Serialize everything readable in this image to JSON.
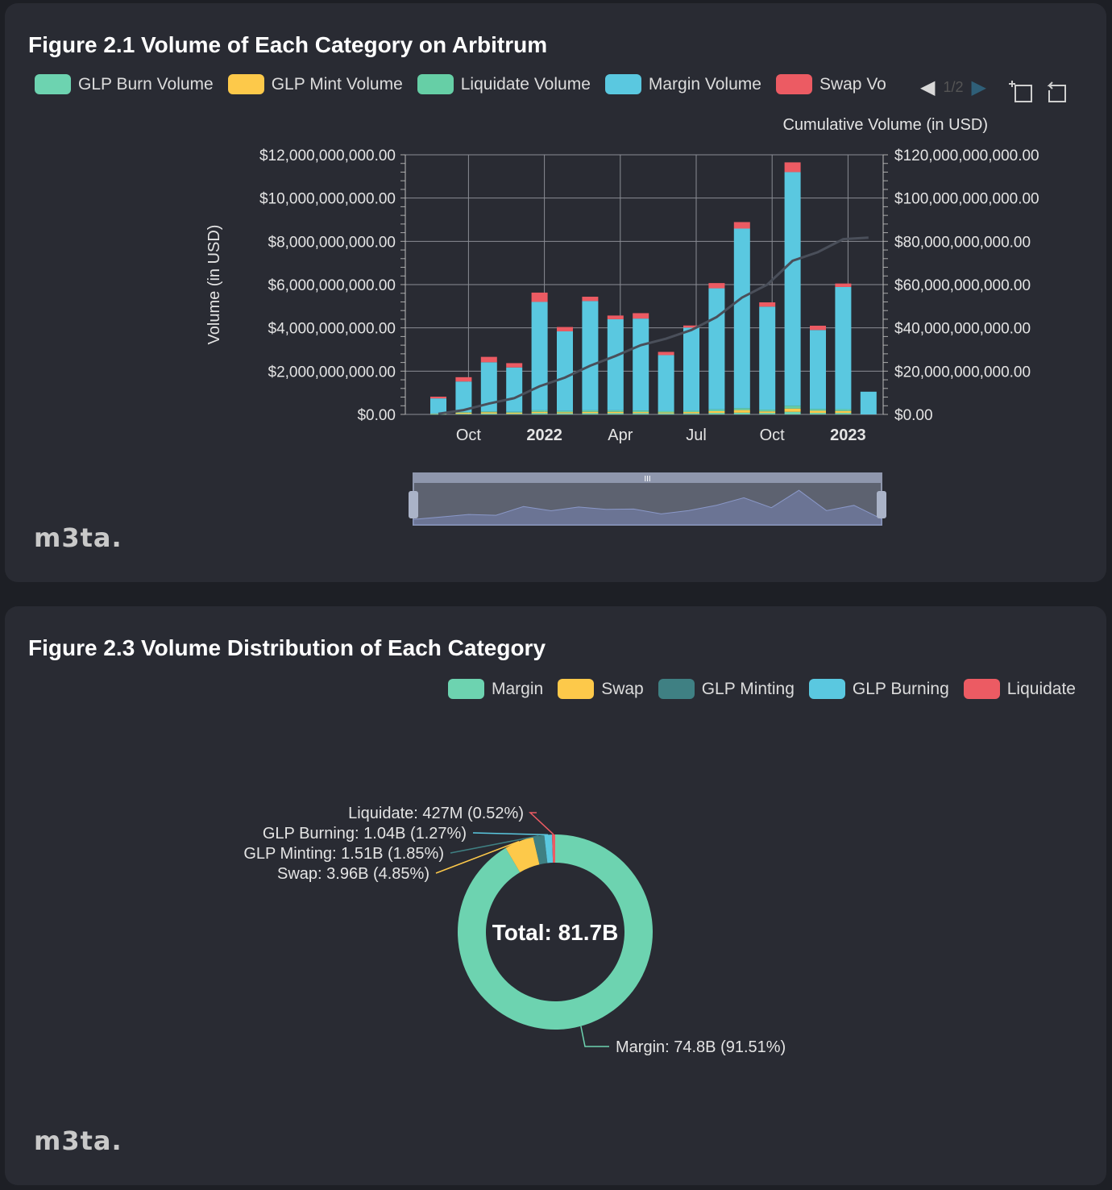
{
  "figure1": {
    "title": "Figure 2.1 Volume of Each Category on Arbitrum",
    "legend": [
      {
        "label": "GLP Burn Volume",
        "color": "#6dd3b0"
      },
      {
        "label": "GLP Mint Volume",
        "color": "#fdc94a"
      },
      {
        "label": "Liquidate Volume",
        "color": "#66cfa6"
      },
      {
        "label": "Margin Volume",
        "color": "#5ac8e0"
      },
      {
        "label": "Swap Vo",
        "color": "#ec5b63"
      }
    ],
    "pager": "1/2",
    "logo": "m3ta."
  },
  "figure2": {
    "title": "Figure 2.3 Volume Distribution of Each Category",
    "legend": [
      {
        "label": "Margin",
        "color": "#6dd3b0"
      },
      {
        "label": "Swap",
        "color": "#fdc94a"
      },
      {
        "label": "GLP Minting",
        "color": "#3f8083"
      },
      {
        "label": "GLP Burning",
        "color": "#5ac8e0"
      },
      {
        "label": "Liquidate",
        "color": "#ec5b63"
      }
    ],
    "logo": "m3ta."
  },
  "chart_data": [
    {
      "type": "bar",
      "title": "Figure 2.1 Volume of Each Category on Arbitrum",
      "ylabel": "Volume (in USD)",
      "y2label": "Cumulative Volume (in USD)",
      "ylim": [
        0,
        12000000000
      ],
      "y2lim": [
        0,
        120000000000
      ],
      "yticks": [
        "$0.00",
        "$2,000,000,000.00",
        "$4,000,000,000.00",
        "$6,000,000,000.00",
        "$8,000,000,000.00",
        "$10,000,000,000.00",
        "$12,000,000,000.00"
      ],
      "y2ticks": [
        "$0.00",
        "$20,000,000,000.00",
        "$40,000,000,000.00",
        "$60,000,000,000.00",
        "$80,000,000,000.00",
        "$100,000,000,000.00",
        "$120,000,000,000.00"
      ],
      "xticks": [
        "Oct",
        "2022",
        "Apr",
        "Jul",
        "Oct",
        "2023"
      ],
      "categories": [
        "2021-09",
        "2021-10",
        "2021-11",
        "2021-12",
        "2022-01",
        "2022-02",
        "2022-03",
        "2022-04",
        "2022-05",
        "2022-06",
        "2022-07",
        "2022-08",
        "2022-09",
        "2022-10",
        "2022-11",
        "2022-12",
        "2023-01",
        "2023-02"
      ],
      "series": [
        {
          "name": "GLP Burn Volume",
          "color": "#6dd3b0",
          "values": [
            0.01,
            0.03,
            0.04,
            0.03,
            0.06,
            0.05,
            0.06,
            0.06,
            0.06,
            0.05,
            0.05,
            0.07,
            0.08,
            0.07,
            0.12,
            0.07,
            0.07,
            0
          ]
        },
        {
          "name": "GLP Mint Volume",
          "color": "#fdc94a",
          "values": [
            0.02,
            0.05,
            0.06,
            0.05,
            0.06,
            0.05,
            0.06,
            0.06,
            0.05,
            0.04,
            0.06,
            0.08,
            0.12,
            0.07,
            0.15,
            0.1,
            0.09,
            0
          ]
        },
        {
          "name": "Liquidate Volume",
          "color": "#66cfa6",
          "values": [
            0.01,
            0.03,
            0.04,
            0.04,
            0.07,
            0.06,
            0.07,
            0.07,
            0.07,
            0.06,
            0.06,
            0.08,
            0.09,
            0.08,
            0.13,
            0.08,
            0.08,
            0
          ]
        },
        {
          "name": "Margin Volume",
          "color": "#5ac8e0",
          "values": [
            0.7,
            1.41,
            2.27,
            2.05,
            5.01,
            3.68,
            5.05,
            4.21,
            4.25,
            2.59,
            3.84,
            5.6,
            8.3,
            4.76,
            10.8,
            3.65,
            5.65,
            1.05
          ]
        },
        {
          "name": "Swap Vo",
          "color": "#ec5b63",
          "values": [
            0.08,
            0.2,
            0.25,
            0.2,
            0.43,
            0.2,
            0.2,
            0.17,
            0.25,
            0.15,
            0.1,
            0.24,
            0.3,
            0.2,
            0.45,
            0.2,
            0.16,
            0
          ]
        }
      ],
      "cumulative": [
        0.3,
        2.0,
        5.0,
        7.5,
        13.0,
        17.0,
        22.5,
        27.0,
        32.0,
        35.0,
        39.0,
        45.0,
        54.0,
        60.0,
        71.0,
        75.0,
        81.0,
        81.7
      ],
      "value_unit_note": "values in billions USD"
    },
    {
      "type": "pie",
      "title": "Figure 2.3 Volume Distribution of Each Category",
      "center_label": "Total: 81.7B",
      "slices": [
        {
          "name": "Margin",
          "value": 74.8,
          "percent": 91.51,
          "color": "#6dd3b0",
          "label": "Margin: 74.8B (91.51%)"
        },
        {
          "name": "Swap",
          "value": 3.96,
          "percent": 4.85,
          "color": "#fdc94a",
          "label": "Swap: 3.96B (4.85%)"
        },
        {
          "name": "GLP Minting",
          "value": 1.51,
          "percent": 1.85,
          "color": "#3f8083",
          "label": "GLP Minting: 1.51B (1.85%)"
        },
        {
          "name": "GLP Burning",
          "value": 1.04,
          "percent": 1.27,
          "color": "#5ac8e0",
          "label": "GLP Burning: 1.04B (1.27%)"
        },
        {
          "name": "Liquidate",
          "value": 0.427,
          "percent": 0.52,
          "color": "#ec5b63",
          "label": "Liquidate: 427M (0.52%)"
        }
      ]
    }
  ]
}
